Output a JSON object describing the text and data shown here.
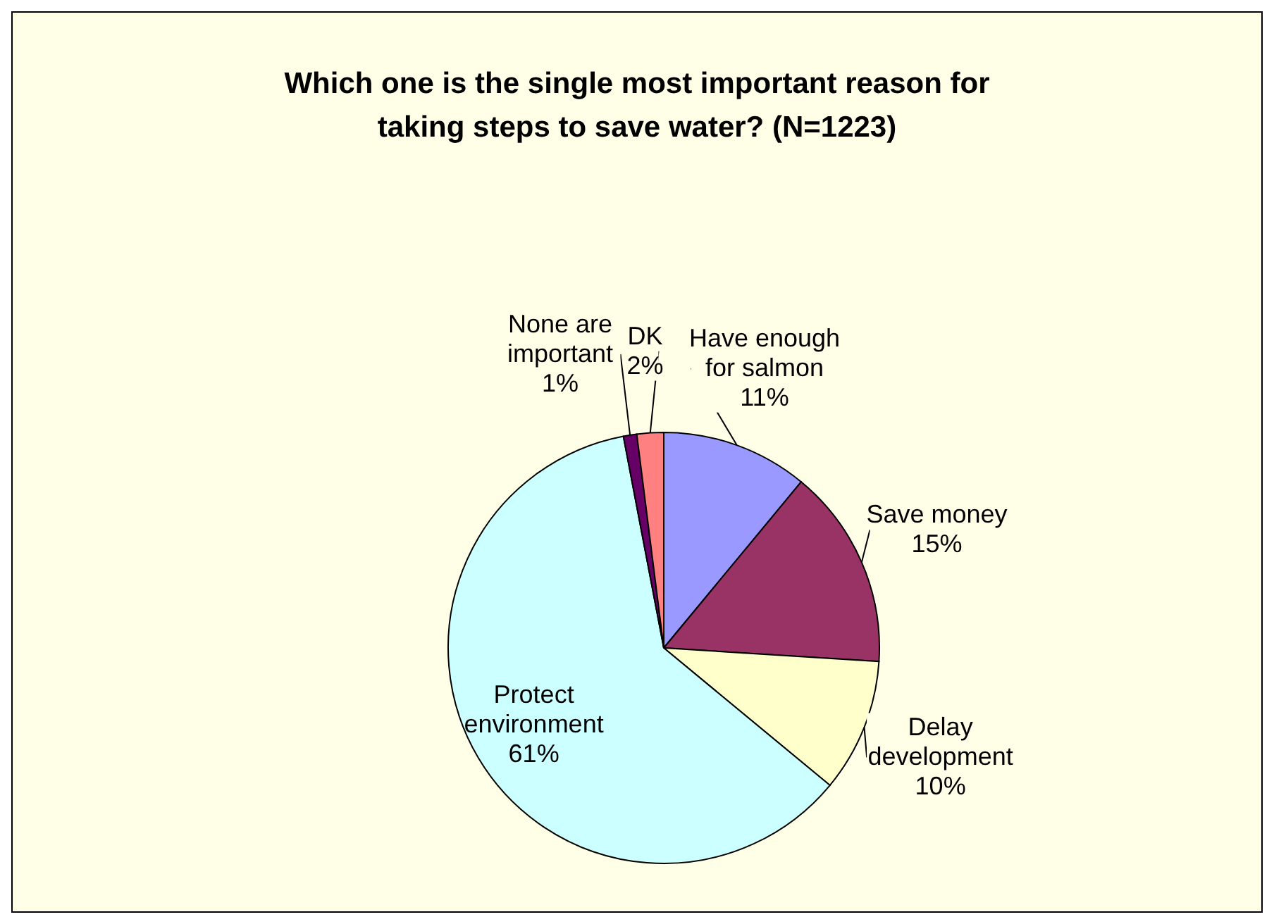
{
  "chart_data": {
    "type": "pie",
    "title": "Which one is the single most important reason for taking steps to save water?  (N=1223)",
    "categories": [
      "Have enough for salmon",
      "Save money",
      "Delay development",
      "Protect environment",
      "None are important",
      "DK"
    ],
    "values": [
      11,
      15,
      10,
      61,
      1,
      2
    ],
    "colors": [
      "#9999ff",
      "#993366",
      "#ffffcc",
      "#ccffff",
      "#660066",
      "#ff8080"
    ],
    "value_labels": [
      "11%",
      "15%",
      "10%",
      "61%",
      "1%",
      "2%"
    ]
  }
}
